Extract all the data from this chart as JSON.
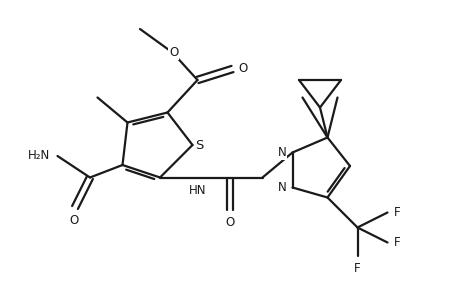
{
  "bg_color": "#ffffff",
  "line_color": "#1a1a1a",
  "line_width": 1.6,
  "figsize": [
    4.6,
    3.0
  ],
  "dpi": 100,
  "xlim": [
    0,
    9.2
  ],
  "ylim": [
    0,
    6.0
  ]
}
